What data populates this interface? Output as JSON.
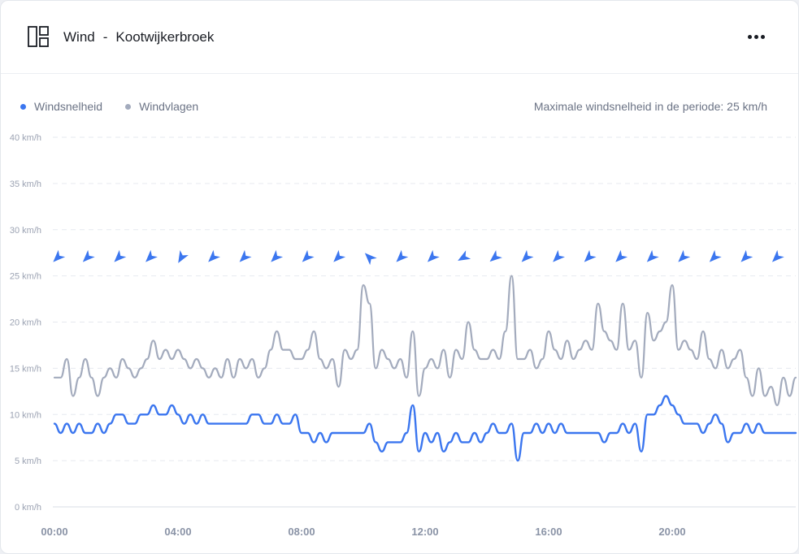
{
  "header": {
    "title": "Wind",
    "separator": "-",
    "location": "Kootwijkerbroek"
  },
  "legend": {
    "speed_label": "Windsnelheid",
    "gust_label": "Windvlagen",
    "speed_color": "#3b76ef",
    "gust_color": "#a3abbd"
  },
  "max_text": "Maximale windsnelheid in de periode: 25 km/h",
  "chart_data": {
    "type": "line",
    "title": "",
    "xlabel": "",
    "ylabel": "",
    "ylim": [
      0,
      40
    ],
    "xlim": [
      0,
      24
    ],
    "ytick_labels": [
      "0 km/h",
      "5 km/h",
      "10 km/h",
      "15 km/h",
      "20 km/h",
      "25 km/h",
      "30 km/h",
      "35 km/h",
      "40 km/h"
    ],
    "xtick_labels": [
      "00:00",
      "04:00",
      "08:00",
      "12:00",
      "16:00",
      "20:00"
    ],
    "grid": true,
    "series": [
      {
        "name": "Windsnelheid",
        "x": [
          0.0,
          0.2,
          0.4,
          0.6,
          0.8,
          1.0,
          1.2,
          1.4,
          1.6,
          1.8,
          2.0,
          2.2,
          2.4,
          2.6,
          2.8,
          3.0,
          3.2,
          3.4,
          3.6,
          3.8,
          4.0,
          4.2,
          4.4,
          4.6,
          4.8,
          5.0,
          5.2,
          5.4,
          5.6,
          5.8,
          6.0,
          6.2,
          6.4,
          6.6,
          6.8,
          7.0,
          7.2,
          7.4,
          7.6,
          7.8,
          8.0,
          8.2,
          8.4,
          8.6,
          8.8,
          9.0,
          9.2,
          9.4,
          9.6,
          9.8,
          10.0,
          10.2,
          10.4,
          10.6,
          10.8,
          11.0,
          11.2,
          11.4,
          11.6,
          11.8,
          12.0,
          12.2,
          12.4,
          12.6,
          12.8,
          13.0,
          13.2,
          13.4,
          13.6,
          13.8,
          14.0,
          14.2,
          14.4,
          14.6,
          14.8,
          15.0,
          15.2,
          15.4,
          15.6,
          15.8,
          16.0,
          16.2,
          16.4,
          16.6,
          16.8,
          17.0,
          17.2,
          17.4,
          17.6,
          17.8,
          18.0,
          18.2,
          18.4,
          18.6,
          18.8,
          19.0,
          19.2,
          19.4,
          19.6,
          19.8,
          20.0,
          20.2,
          20.4,
          20.6,
          20.8,
          21.0,
          21.2,
          21.4,
          21.6,
          21.8,
          22.0,
          22.2,
          22.4,
          22.6,
          22.8,
          23.0,
          23.2,
          23.4,
          23.6,
          23.8,
          24.0
        ],
        "values": [
          9,
          8,
          9,
          8,
          9,
          8,
          8,
          9,
          8,
          9,
          10,
          10,
          9,
          9,
          10,
          10,
          11,
          10,
          10,
          11,
          10,
          9,
          10,
          9,
          10,
          9,
          9,
          9,
          9,
          9,
          9,
          9,
          10,
          10,
          9,
          9,
          10,
          9,
          9,
          10,
          8,
          8,
          7,
          8,
          7,
          8,
          8,
          8,
          8,
          8,
          8,
          9,
          7,
          6,
          7,
          7,
          7,
          8,
          11,
          6,
          8,
          7,
          8,
          6,
          7,
          8,
          7,
          7,
          8,
          7,
          8,
          9,
          8,
          8,
          9,
          5,
          8,
          8,
          9,
          8,
          9,
          8,
          9,
          8,
          8,
          8,
          8,
          8,
          8,
          7,
          8,
          8,
          9,
          8,
          9,
          6,
          10,
          10,
          11,
          12,
          11,
          10,
          9,
          9,
          9,
          8,
          9,
          10,
          9,
          7,
          8,
          8,
          9,
          8,
          9,
          8,
          8,
          8,
          8,
          8,
          8
        ]
      },
      {
        "name": "Windvlagen",
        "x": [
          0.0,
          0.2,
          0.4,
          0.6,
          0.8,
          1.0,
          1.2,
          1.4,
          1.6,
          1.8,
          2.0,
          2.2,
          2.4,
          2.6,
          2.8,
          3.0,
          3.2,
          3.4,
          3.6,
          3.8,
          4.0,
          4.2,
          4.4,
          4.6,
          4.8,
          5.0,
          5.2,
          5.4,
          5.6,
          5.8,
          6.0,
          6.2,
          6.4,
          6.6,
          6.8,
          7.0,
          7.2,
          7.4,
          7.6,
          7.8,
          8.0,
          8.2,
          8.4,
          8.6,
          8.8,
          9.0,
          9.2,
          9.4,
          9.6,
          9.8,
          10.0,
          10.2,
          10.4,
          10.6,
          10.8,
          11.0,
          11.2,
          11.4,
          11.6,
          11.8,
          12.0,
          12.2,
          12.4,
          12.6,
          12.8,
          13.0,
          13.2,
          13.4,
          13.6,
          13.8,
          14.0,
          14.2,
          14.4,
          14.6,
          14.8,
          15.0,
          15.2,
          15.4,
          15.6,
          15.8,
          16.0,
          16.2,
          16.4,
          16.6,
          16.8,
          17.0,
          17.2,
          17.4,
          17.6,
          17.8,
          18.0,
          18.2,
          18.4,
          18.6,
          18.8,
          19.0,
          19.2,
          19.4,
          19.6,
          19.8,
          20.0,
          20.2,
          20.4,
          20.6,
          20.8,
          21.0,
          21.2,
          21.4,
          21.6,
          21.8,
          22.0,
          22.2,
          22.4,
          22.6,
          22.8,
          23.0,
          23.2,
          23.4,
          23.6,
          23.8,
          24.0
        ],
        "values": [
          14,
          14,
          16,
          12,
          14,
          16,
          14,
          12,
          14,
          15,
          14,
          16,
          15,
          14,
          15,
          16,
          18,
          16,
          17,
          16,
          17,
          16,
          15,
          16,
          15,
          14,
          15,
          14,
          16,
          14,
          16,
          15,
          16,
          14,
          15,
          17,
          19,
          17,
          17,
          16,
          16,
          17,
          19,
          16,
          15,
          16,
          13,
          17,
          16,
          17,
          24,
          22,
          15,
          17,
          16,
          15,
          16,
          14,
          19,
          12,
          15,
          16,
          15,
          17,
          14,
          17,
          16,
          20,
          17,
          16,
          16,
          17,
          16,
          19,
          25,
          16,
          16,
          17,
          15,
          16,
          19,
          17,
          16,
          18,
          16,
          17,
          18,
          17,
          22,
          19,
          18,
          17,
          22,
          17,
          18,
          14,
          21,
          18,
          19,
          20,
          24,
          17,
          18,
          17,
          16,
          19,
          16,
          15,
          17,
          15,
          16,
          17,
          14,
          12,
          15,
          12,
          13,
          11,
          14,
          12,
          14
        ]
      }
    ],
    "wind_arrows": {
      "x": [
        0.0,
        1.0,
        2.0,
        3.0,
        4.0,
        5.0,
        6.0,
        7.0,
        8.0,
        9.0,
        10.0,
        11.0,
        12.0,
        13.0,
        14.0,
        15.0,
        16.0,
        17.0,
        18.0,
        19.0,
        20.0,
        21.0,
        22.0,
        23.0
      ],
      "direction_deg": [
        225,
        225,
        225,
        225,
        210,
        225,
        225,
        225,
        225,
        225,
        315,
        225,
        225,
        240,
        230,
        225,
        225,
        225,
        225,
        225,
        225,
        225,
        225,
        225
      ]
    }
  }
}
